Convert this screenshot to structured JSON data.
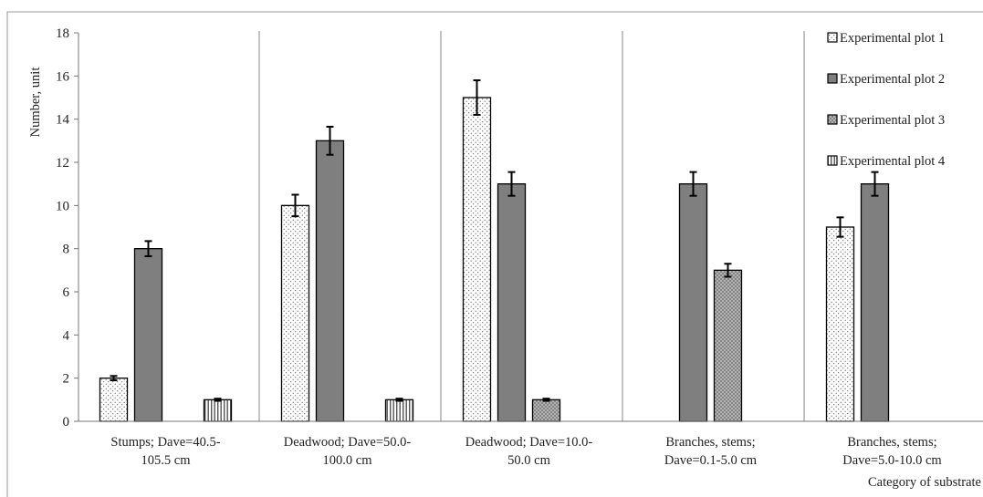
{
  "chart_data": {
    "type": "bar",
    "title": "",
    "ylabel": "Number, unit",
    "xlabel": "Category of substrate",
    "ylim": [
      0,
      18
    ],
    "yticks": [
      0,
      2,
      4,
      6,
      8,
      10,
      12,
      14,
      16,
      18
    ],
    "grid": false,
    "legend_position": "top-right",
    "categories": [
      [
        "Stumps; Dave=40.5-",
        "105.5 cm"
      ],
      [
        "Deadwood; Dave=50.0-",
        "100.0 cm"
      ],
      [
        "Deadwood; Dave=10.0-",
        "50.0 cm"
      ],
      [
        "Branches, stems;",
        "Dave=0.1-5.0 cm"
      ],
      [
        "Branches, stems;",
        "Dave=5.0-10.0 cm"
      ]
    ],
    "series": [
      {
        "name": "Experimental plot 1",
        "pattern": "dots",
        "color": "#ffffff",
        "values": [
          2,
          10,
          15,
          null,
          9
        ],
        "errors": [
          0.1,
          0.5,
          0.8,
          null,
          0.45
        ]
      },
      {
        "name": "Experimental plot 2",
        "pattern": "solid",
        "color": "#7f7f7f",
        "values": [
          8,
          13,
          11,
          11,
          11
        ],
        "errors": [
          0.35,
          0.65,
          0.55,
          0.55,
          0.55
        ]
      },
      {
        "name": "Experimental plot 3",
        "pattern": "crosshatch",
        "color": "#b8b8b8",
        "values": [
          null,
          null,
          1,
          7,
          null
        ],
        "errors": [
          null,
          null,
          0.05,
          0.3,
          null
        ]
      },
      {
        "name": "Experimental plot 4",
        "pattern": "vertical-stripes",
        "color": "#ffffff",
        "values": [
          1,
          1,
          null,
          null,
          null
        ],
        "errors": [
          0.05,
          0.05,
          null,
          null,
          null
        ]
      }
    ]
  }
}
